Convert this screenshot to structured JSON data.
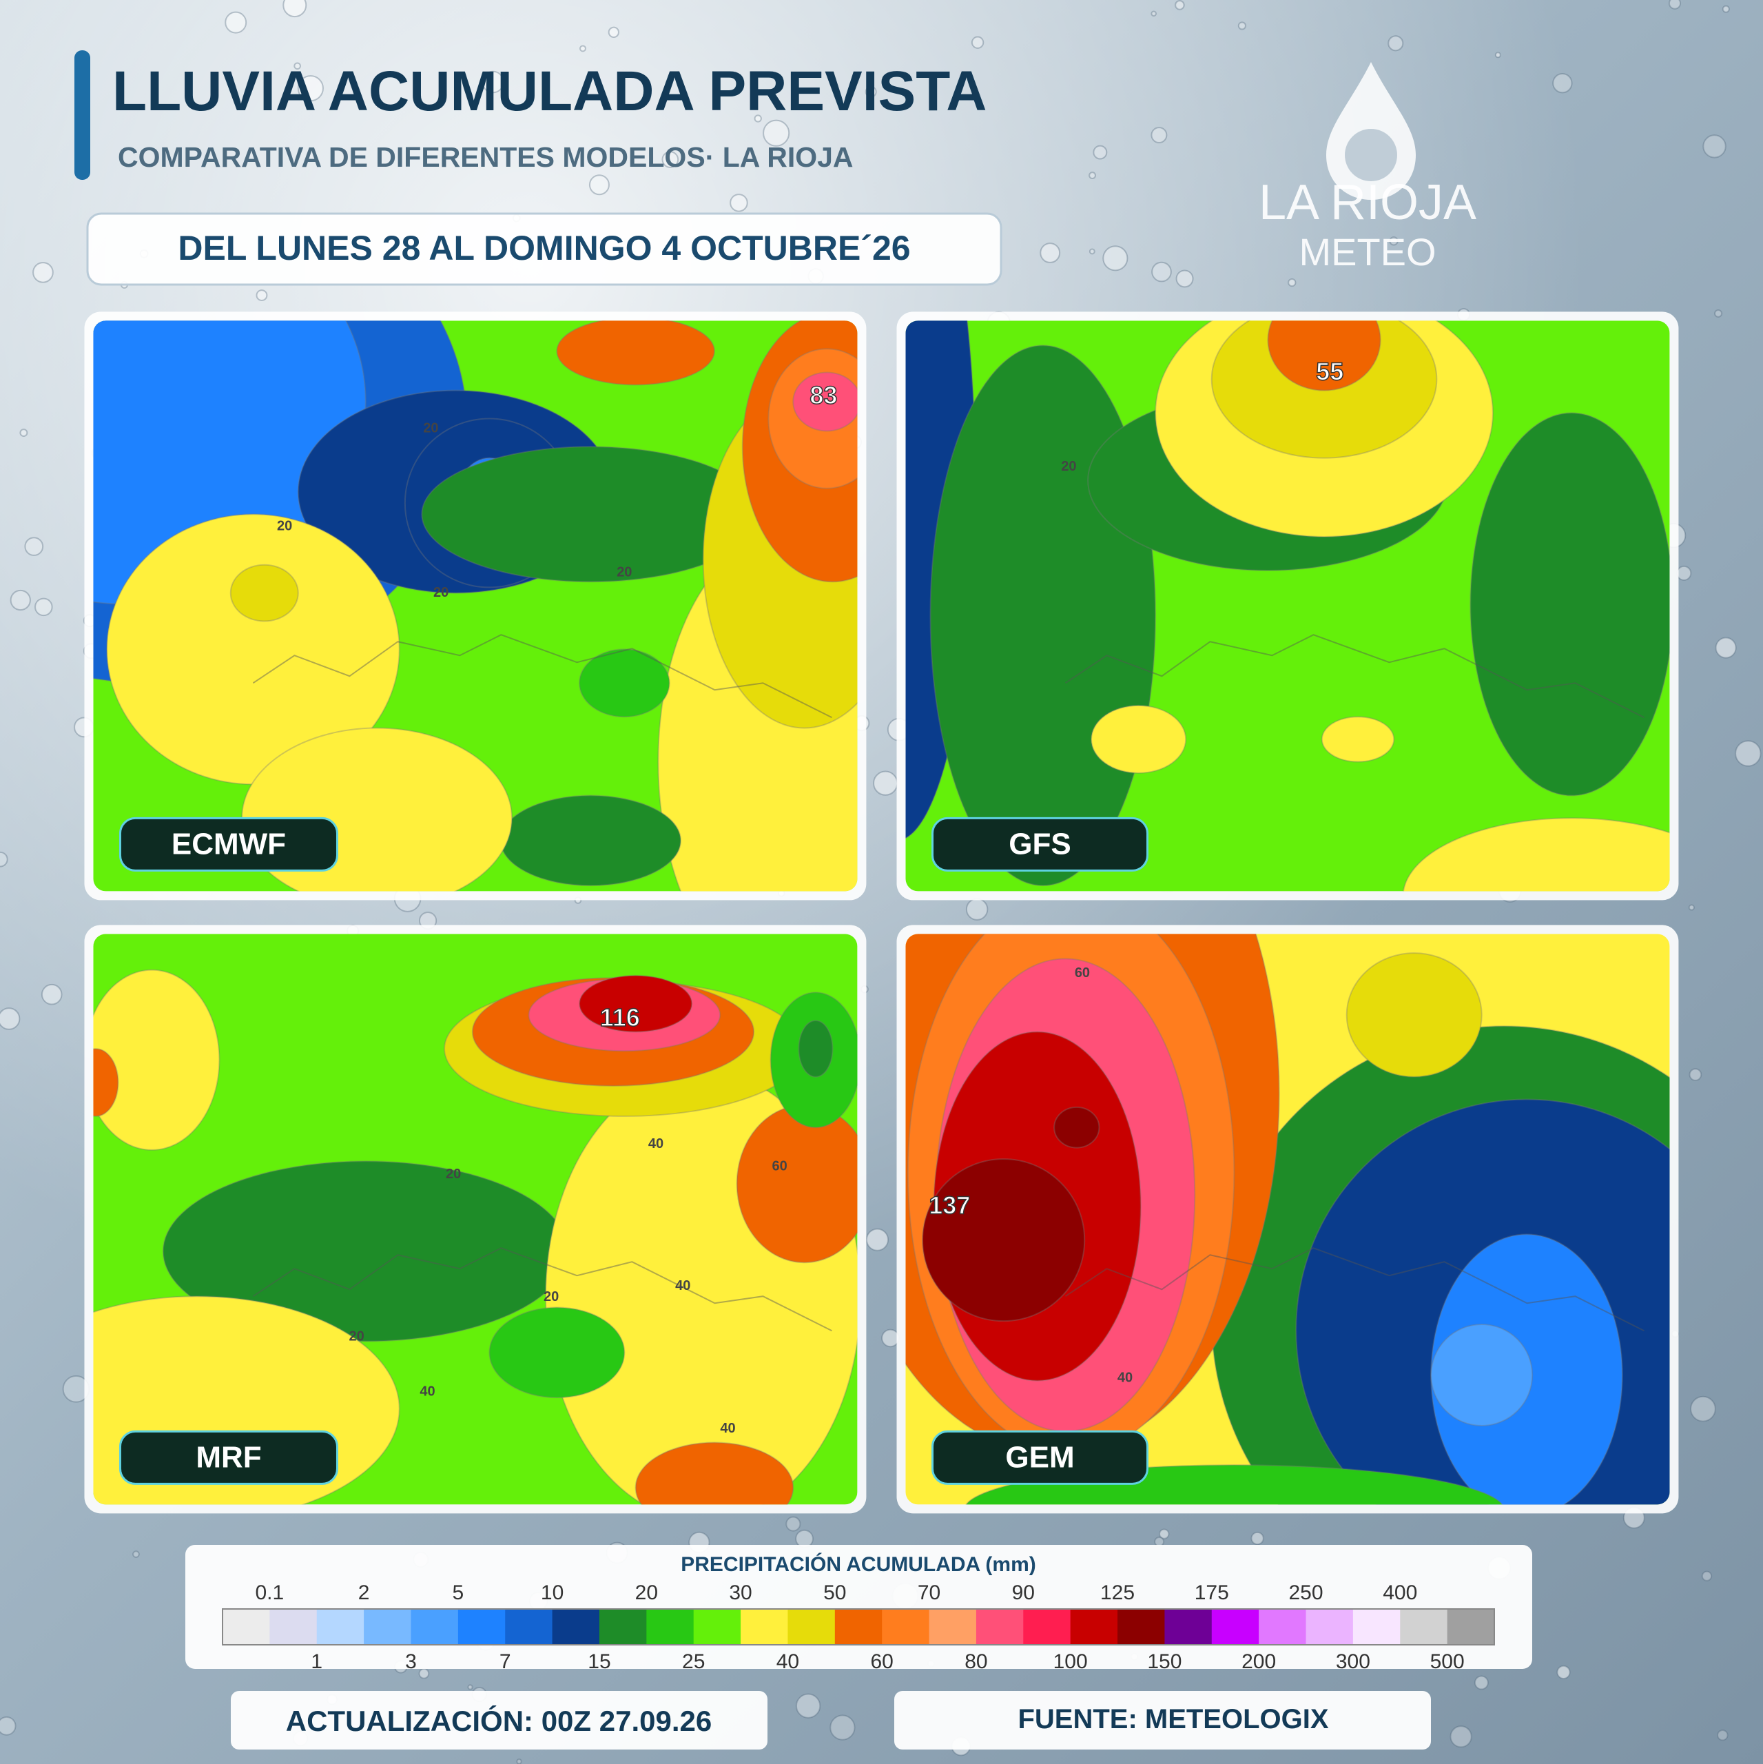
{
  "header": {
    "title": "LLUVIA ACUMULADA PREVISTA",
    "subtitle": "COMPARATIVA DE DIFERENTES MODELOS· LA RIOJA",
    "period": "DEL LUNES 28 AL DOMINGO 4 OCTUBRE´26"
  },
  "logo": {
    "name": "LA RIOJA",
    "sub": "METEO"
  },
  "maps": [
    {
      "model": "ECMWF",
      "labels": [
        "83",
        "20",
        "20",
        "20",
        "20"
      ]
    },
    {
      "model": "GFS",
      "labels": [
        "55",
        "20"
      ]
    },
    {
      "model": "MRF",
      "labels": [
        "116",
        "40",
        "60",
        "20",
        "40",
        "20",
        "20",
        "40",
        "40"
      ]
    },
    {
      "model": "GEM",
      "labels": [
        "60",
        "137",
        "40"
      ]
    }
  ],
  "legend": {
    "title": "PRECIPITACIÓN ACUMULADA (mm)",
    "top_labels": [
      0.1,
      2,
      5,
      10,
      20,
      30,
      50,
      70,
      90,
      125,
      175,
      250,
      400
    ],
    "bottom_labels": [
      1,
      3,
      7,
      15,
      25,
      40,
      60,
      80,
      100,
      150,
      200,
      300,
      500
    ],
    "colors": [
      "#ececec",
      "#dcdcf0",
      "#b4d7ff",
      "#78b9ff",
      "#4aa0ff",
      "#1e82ff",
      "#1464d2",
      "#0a3c8c",
      "#1e8c28",
      "#28c814",
      "#64f00a",
      "#fff03c",
      "#e6dc0a",
      "#f06400",
      "#ff7d1e",
      "#ffa064",
      "#ff5078",
      "#ff1e50",
      "#c80000",
      "#8c0000",
      "#6e0096",
      "#c800ff",
      "#e178ff",
      "#ebb4ff",
      "#f8e6ff",
      "#d2d2d2",
      "#a0a0a0"
    ]
  },
  "footer": {
    "update": "ACTUALIZACIÓN: 00Z 27.09.26",
    "source": "FUENTE: METEOLOGIX"
  }
}
